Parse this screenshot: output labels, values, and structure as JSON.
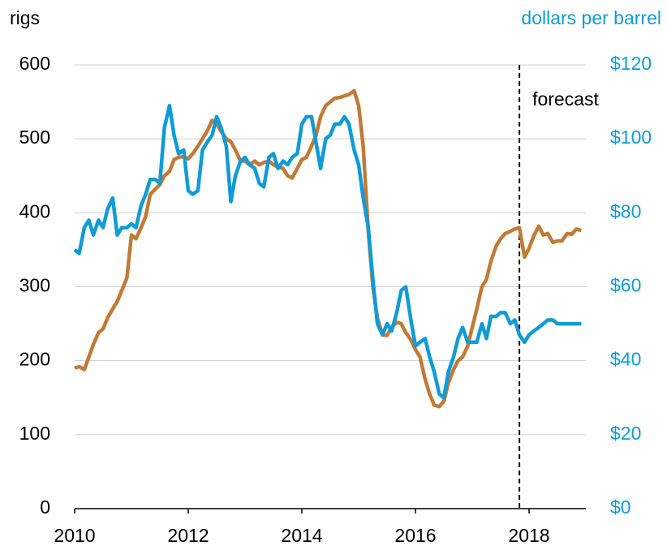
{
  "chart_data": {
    "type": "line",
    "y_label": "rigs",
    "y2_label": "dollars per barrel",
    "annotation": "forecast",
    "forecast_x": 2017.83,
    "x": [
      2010.0,
      2010.08,
      2010.17,
      2010.25,
      2010.33,
      2010.42,
      2010.5,
      2010.58,
      2010.67,
      2010.75,
      2010.83,
      2010.92,
      2011.0,
      2011.08,
      2011.17,
      2011.25,
      2011.33,
      2011.42,
      2011.5,
      2011.58,
      2011.67,
      2011.75,
      2011.83,
      2011.92,
      2012.0,
      2012.08,
      2012.17,
      2012.25,
      2012.33,
      2012.42,
      2012.5,
      2012.58,
      2012.67,
      2012.75,
      2012.83,
      2012.92,
      2013.0,
      2013.08,
      2013.17,
      2013.25,
      2013.33,
      2013.42,
      2013.5,
      2013.58,
      2013.67,
      2013.75,
      2013.83,
      2013.92,
      2014.0,
      2014.08,
      2014.17,
      2014.25,
      2014.33,
      2014.42,
      2014.5,
      2014.58,
      2014.67,
      2014.75,
      2014.83,
      2014.92,
      2015.0,
      2015.08,
      2015.17,
      2015.25,
      2015.33,
      2015.42,
      2015.5,
      2015.58,
      2015.67,
      2015.75,
      2015.83,
      2015.92,
      2016.0,
      2016.08,
      2016.17,
      2016.25,
      2016.33,
      2016.42,
      2016.5,
      2016.58,
      2016.67,
      2016.75,
      2016.83,
      2016.92,
      2017.0,
      2017.08,
      2017.17,
      2017.25,
      2017.33,
      2017.42,
      2017.5,
      2017.58,
      2017.67,
      2017.75,
      2017.83,
      2017.92,
      2018.0,
      2018.08,
      2018.17,
      2018.25,
      2018.33,
      2018.42,
      2018.5,
      2018.58,
      2018.67,
      2018.75,
      2018.83,
      2018.92
    ],
    "series": [
      {
        "name": "rigs",
        "color": "#c17a36",
        "axis": "y",
        "values": [
          190,
          192,
          188,
          205,
          222,
          238,
          243,
          258,
          270,
          280,
          295,
          312,
          370,
          365,
          380,
          395,
          425,
          432,
          438,
          450,
          456,
          472,
          475,
          476,
          473,
          480,
          490,
          500,
          510,
          525,
          520,
          510,
          500,
          496,
          485,
          470,
          470,
          465,
          470,
          465,
          468,
          470,
          465,
          462,
          460,
          450,
          447,
          460,
          472,
          475,
          490,
          505,
          530,
          545,
          550,
          555,
          556,
          558,
          560,
          565,
          545,
          490,
          375,
          300,
          258,
          235,
          234,
          245,
          252,
          250,
          238,
          228,
          215,
          205,
          175,
          155,
          140,
          138,
          145,
          170,
          188,
          200,
          205,
          220,
          245,
          270,
          300,
          310,
          335,
          355,
          365,
          372,
          375,
          378,
          380,
          340,
          352,
          368,
          382,
          370,
          372,
          360,
          362,
          362,
          372,
          371,
          378,
          376
        ]
      },
      {
        "name": "dollars per barrel",
        "color": "#0f9bd7",
        "axis": "y2",
        "values": [
          70,
          69,
          76,
          78,
          74,
          78,
          76,
          81,
          84,
          74,
          76,
          76,
          77,
          76,
          82,
          85,
          89,
          89,
          88,
          103,
          109,
          101,
          96,
          97,
          86,
          85,
          86,
          97,
          99,
          101,
          106,
          103,
          98,
          83,
          90,
          94,
          95,
          93,
          92,
          88,
          87,
          95,
          96,
          92,
          94,
          93,
          95,
          96,
          104,
          106,
          106,
          99,
          92,
          100,
          101,
          104,
          104,
          106,
          104,
          97,
          93,
          84,
          76,
          62,
          50,
          47,
          50,
          48,
          53,
          59,
          60,
          51,
          44,
          45,
          46,
          41,
          37,
          31,
          30,
          37,
          41,
          46,
          49,
          45,
          45,
          45,
          50,
          46,
          52,
          52,
          53,
          53,
          50,
          51,
          47,
          45,
          47,
          48,
          49,
          50,
          51,
          51,
          50,
          50,
          50,
          50,
          50,
          50
        ]
      }
    ],
    "xlim": [
      2010,
      2019
    ],
    "xticks": [
      2010,
      2012,
      2014,
      2016,
      2018
    ],
    "ylim": [
      0,
      600
    ],
    "yticks": [
      0,
      100,
      200,
      300,
      400,
      500,
      600
    ],
    "y2lim": [
      0,
      120
    ],
    "y2ticks": [
      {
        "value": 0,
        "label": "$0"
      },
      {
        "value": 20,
        "label": "$20"
      },
      {
        "value": 40,
        "label": "$40"
      },
      {
        "value": 60,
        "label": "$60"
      },
      {
        "value": 80,
        "label": "$80"
      },
      {
        "value": 100,
        "label": "$100"
      },
      {
        "value": 120,
        "label": "$120"
      }
    ],
    "grid": true
  }
}
